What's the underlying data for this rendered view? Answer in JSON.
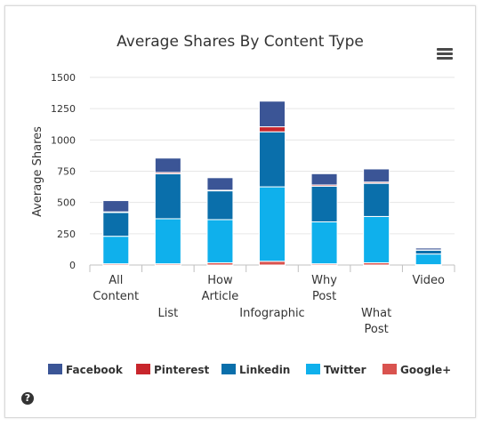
{
  "chart_data": {
    "type": "bar",
    "stacked": true,
    "title": "Average Shares By Content Type",
    "ylabel": "Average Shares",
    "xlabel": "",
    "ylim": [
      0,
      1500
    ],
    "yticks": [
      0,
      250,
      500,
      750,
      1000,
      1250,
      1500
    ],
    "grid": true,
    "legend_position": "bottom",
    "categories": [
      [
        "All",
        "Content"
      ],
      [
        "List"
      ],
      [
        "How",
        "Article"
      ],
      [
        "Infographic"
      ],
      [
        "Why",
        "Post"
      ],
      [
        "What",
        "Post"
      ],
      [
        "Video"
      ]
    ],
    "series": [
      {
        "name": "Google+",
        "color": "#d9534f",
        "values": [
          10,
          10,
          18,
          30,
          10,
          18,
          3
        ]
      },
      {
        "name": "Twitter",
        "color": "#0fb0ec",
        "values": [
          220,
          360,
          345,
          595,
          335,
          370,
          85
        ]
      },
      {
        "name": "Linkedin",
        "color": "#0a6fab",
        "values": [
          190,
          360,
          230,
          440,
          285,
          265,
          30
        ]
      },
      {
        "name": "Pinterest",
        "color": "#c8262c",
        "values": [
          5,
          10,
          5,
          40,
          10,
          10,
          3
        ]
      },
      {
        "name": "Facebook",
        "color": "#3b5596",
        "values": [
          90,
          115,
          100,
          205,
          90,
          105,
          15
        ]
      }
    ],
    "legend_order": [
      "Facebook",
      "Pinterest",
      "Linkedin",
      "Twitter",
      "Google+"
    ]
  }
}
